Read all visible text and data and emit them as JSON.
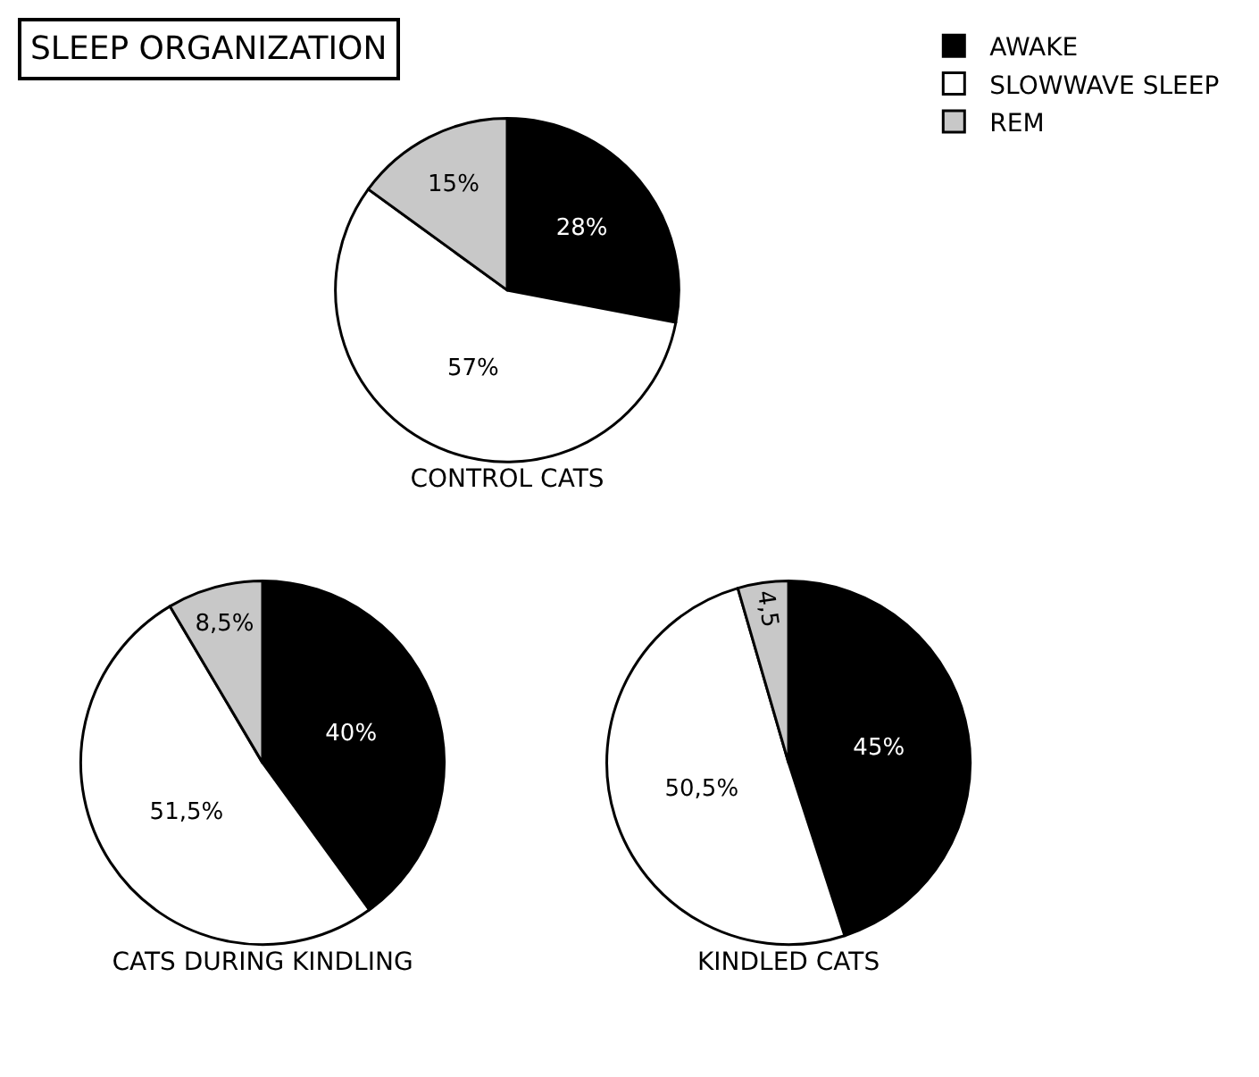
{
  "chart_data": [
    {
      "type": "pie",
      "title": "CONTROL CATS",
      "annotations": [
        "SLEEP ORGANIZATION"
      ],
      "legend": "top right",
      "categories": [
        "AWAKE",
        "SLOWWAVE SLEEP",
        "REM"
      ],
      "values": [
        28,
        57,
        15
      ],
      "colors": [
        "#000000",
        "#ffffff",
        "#c8c8c8"
      ],
      "value_labels": [
        "28%",
        "57%",
        "15%"
      ]
    },
    {
      "type": "pie",
      "title": "CATS DURING KINDLING",
      "categories": [
        null,
        null,
        null
      ],
      "values": [
        40,
        51.5,
        8.5
      ],
      "colors": [
        "#000000",
        "#ffffff",
        "#c8c8c8"
      ],
      "value_labels": [
        "40%",
        "51,5%",
        "8,5%"
      ]
    },
    {
      "type": "pie",
      "title": "KINDLED CATS",
      "categories": [
        null,
        null,
        null
      ],
      "values": [
        45,
        50.5,
        4.5
      ],
      "colors": [
        "#000000",
        "#ffffff",
        "#c8c8c8"
      ],
      "value_labels": [
        "45%",
        "50,5%",
        "4,5"
      ]
    }
  ]
}
